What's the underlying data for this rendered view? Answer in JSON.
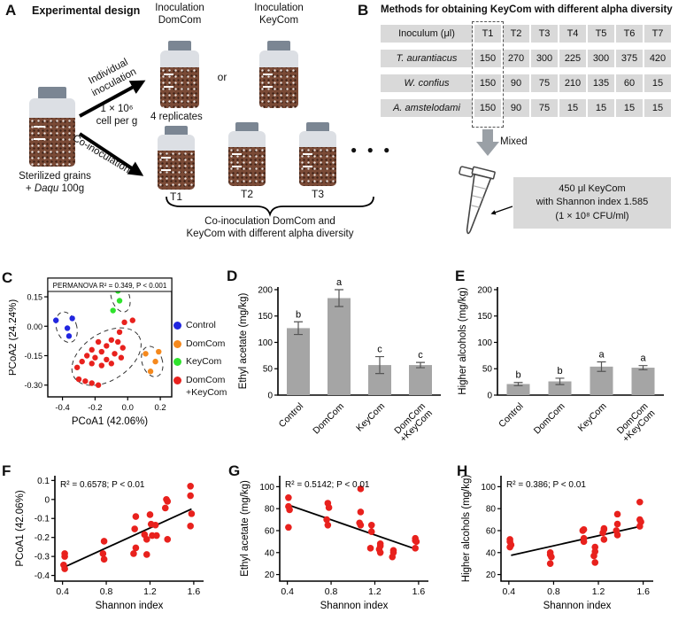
{
  "colors": {
    "bar_gray": "#a5a5a5",
    "red": "#e8211d",
    "blue": "#2126e0",
    "orange": "#f5891d",
    "green": "#2ee32c",
    "cell_gray": "#d9d9d9",
    "cap_gray": "#7b8693",
    "grain_brown": "#7a4a36"
  },
  "panels": {
    "a": {
      "tag": "A",
      "title": "Experimental design",
      "inoc_domcom": "Inoculation\nDomCom",
      "inoc_keycom": "Inoculation\nKeyCom",
      "or": "or",
      "individual": "Individual\ninoculation",
      "co": "Co-inoculation",
      "dose": "1 × 10⁶\ncell per g",
      "replicates": "4 replicates",
      "source_line1": "Sterilized grains",
      "source_pre": "+ ",
      "source_species": "Daqu",
      "source_post": " 100g",
      "jars": [
        "T1",
        "T2",
        "T3"
      ],
      "dots": "● ● ●",
      "brace_caption": "Co-inoculation DomCom and\nKeyCom with different alpha diversity"
    },
    "b": {
      "tag": "B",
      "title": "Methods for obtaining KeyCom with different alpha diversity",
      "table": {
        "header": [
          "Inoculum (μl)",
          "T1",
          "T2",
          "T3",
          "T4",
          "T5",
          "T6",
          "T7"
        ],
        "rows": [
          {
            "label": "T. aurantiacus",
            "italic": true,
            "values": [
              150,
              270,
              300,
              225,
              300,
              375,
              420
            ]
          },
          {
            "label": "W. confius",
            "italic": true,
            "values": [
              150,
              90,
              75,
              210,
              135,
              60,
              15
            ]
          },
          {
            "label": "A. amstelodami",
            "italic": true,
            "values": [
              150,
              90,
              75,
              15,
              15,
              15,
              15
            ]
          }
        ]
      },
      "mixed": "Mixed",
      "note": "450 μl KeyCom\nwith Shannon index 1.585\n(1 × 10⁸ CFU/ml)"
    },
    "c": {
      "tag": "C"
    },
    "d": {
      "tag": "D"
    },
    "e": {
      "tag": "E"
    },
    "f": {
      "tag": "F"
    },
    "g": {
      "tag": "G"
    },
    "h": {
      "tag": "H"
    }
  },
  "chart_data": [
    {
      "id": "pcoa",
      "panel": "C",
      "type": "scatter",
      "frame": "box",
      "annotation": "PERMANOVA R² = 0.349, P < 0.001",
      "annotation_boxed": true,
      "xlabel": "PCoA1 (42.06%)",
      "ylabel": "PCoA2 (24.24%)",
      "xlim": [
        -0.49,
        0.27
      ],
      "ylim": [
        -0.36,
        0.245
      ],
      "xticks": {
        "v": [
          -0.4,
          -0.2,
          0.0,
          0.2
        ],
        "t": [
          "-0.4",
          "-0.2",
          "0.0",
          "0.2"
        ]
      },
      "yticks": {
        "v": [
          0.15,
          0.0,
          -0.15,
          -0.3
        ],
        "t": [
          "0.15",
          "0.00",
          "-0.15",
          "-0.30"
        ]
      },
      "series": [
        {
          "name": "Control",
          "color": "#2126e0",
          "points": [
            [
              -0.44,
              0.03
            ],
            [
              -0.34,
              0.04
            ],
            [
              -0.37,
              -0.01
            ],
            [
              -0.36,
              -0.05
            ]
          ]
        },
        {
          "name": "DomCom",
          "color": "#f5891d",
          "points": [
            [
              0.11,
              -0.14
            ],
            [
              0.19,
              -0.13
            ],
            [
              0.17,
              -0.18
            ],
            [
              0.14,
              -0.23
            ]
          ]
        },
        {
          "name": "KeyCom",
          "color": "#2ee32c",
          "points": [
            [
              -0.06,
              0.18
            ],
            [
              0.01,
              0.19
            ],
            [
              -0.05,
              0.13
            ],
            [
              -0.09,
              0.08
            ]
          ]
        },
        {
          "name": "DomCom+KeyCom",
          "color": "#e8211d",
          "points": [
            [
              -0.02,
              0.02
            ],
            [
              0.03,
              0.03
            ],
            [
              -0.05,
              -0.03
            ],
            [
              -0.1,
              -0.07
            ],
            [
              -0.06,
              -0.08
            ],
            [
              -0.18,
              -0.08
            ],
            [
              -0.13,
              -0.1
            ],
            [
              -0.03,
              -0.11
            ],
            [
              -0.22,
              -0.12
            ],
            [
              -0.16,
              -0.13
            ],
            [
              -0.08,
              -0.14
            ],
            [
              -0.25,
              -0.15
            ],
            [
              -0.2,
              -0.16
            ],
            [
              -0.13,
              -0.17
            ],
            [
              -0.04,
              -0.16
            ],
            [
              -0.28,
              -0.18
            ],
            [
              -0.22,
              -0.19
            ],
            [
              -0.16,
              -0.2
            ],
            [
              -0.1,
              -0.19
            ],
            [
              -0.31,
              -0.21
            ],
            [
              -0.3,
              -0.27
            ],
            [
              -0.26,
              -0.28
            ],
            [
              -0.22,
              -0.29
            ],
            [
              -0.18,
              -0.3
            ]
          ]
        }
      ],
      "ellipses": [
        {
          "cx": -0.375,
          "cy": -0.005,
          "rx": 0.062,
          "ry": 0.08,
          "rot": -18
        },
        {
          "cx": -0.045,
          "cy": 0.15,
          "rx": 0.055,
          "ry": 0.08,
          "rot": -18
        },
        {
          "cx": 0.15,
          "cy": -0.18,
          "rx": 0.062,
          "ry": 0.08,
          "rot": -18
        },
        {
          "cx": -0.13,
          "cy": -0.155,
          "rx": 0.235,
          "ry": 0.12,
          "rot": -33
        }
      ],
      "legend": [
        {
          "label": "Control",
          "color": "#2126e0"
        },
        {
          "label": "DomCom",
          "color": "#f5891d"
        },
        {
          "label": "KeyCom",
          "color": "#2ee32c"
        },
        {
          "label": "DomCom\n+KeyCom",
          "color": "#e8211d"
        }
      ]
    },
    {
      "id": "ethyl_bar",
      "panel": "D",
      "type": "bar",
      "ylabel": "Ethyl acetate (mg/kg)",
      "categories": [
        "Control",
        "DomCom",
        "KeyCom",
        "DomCom\n+KeyCom"
      ],
      "values": [
        127,
        184,
        57,
        57
      ],
      "errors": [
        12,
        16,
        16,
        5
      ],
      "letters": [
        "b",
        "a",
        "c",
        "c"
      ],
      "xlim": [
        0,
        1
      ],
      "ylim": [
        0,
        205
      ],
      "xticks": {
        "v": [],
        "t": []
      },
      "yticks": {
        "v": [
          0,
          50,
          100,
          150,
          200
        ],
        "t": [
          "0",
          "50",
          "100",
          "150",
          "200"
        ]
      }
    },
    {
      "id": "higher_bar",
      "panel": "E",
      "type": "bar",
      "ylabel": "Higher alcohols (mg/kg)",
      "categories": [
        "Control",
        "DomCom",
        "KeyCom",
        "DomCom\n+KeyCom"
      ],
      "values": [
        21,
        26,
        54,
        52
      ],
      "errors": [
        3,
        6,
        9,
        4
      ],
      "letters": [
        "b",
        "b",
        "a",
        "a"
      ],
      "xlim": [
        0,
        1
      ],
      "ylim": [
        0,
        205
      ],
      "xticks": {
        "v": [],
        "t": []
      },
      "yticks": {
        "v": [
          0,
          50,
          100,
          150,
          200
        ],
        "t": [
          "0",
          "50",
          "100",
          "150",
          "200"
        ]
      }
    },
    {
      "id": "f",
      "panel": "F",
      "type": "scatter",
      "annotation": "R² = 0.6578; P < 0.01",
      "xlabel": "Shannon index",
      "ylabel": "PCoA1 (42.06%)",
      "xlim": [
        0.33,
        1.69
      ],
      "ylim": [
        -0.43,
        0.125
      ],
      "xticks": {
        "v": [
          0.4,
          0.8,
          1.2,
          1.6
        ],
        "t": [
          "0.4",
          "0.8",
          "1.2",
          "1.6"
        ]
      },
      "yticks": {
        "v": [
          0.1,
          0,
          -0.1,
          -0.2,
          -0.3,
          -0.4
        ],
        "t": [
          "0.1",
          "0",
          "-0.1",
          "-0.2",
          "-0.3",
          "-0.4"
        ]
      },
      "trend": [
        [
          0.42,
          -0.355
        ],
        [
          1.58,
          -0.05
        ]
      ],
      "series": [
        {
          "name": "samples",
          "color": "#e8211d",
          "points": [
            [
              0.42,
              -0.285
            ],
            [
              0.42,
              -0.3
            ],
            [
              0.41,
              -0.345
            ],
            [
              0.42,
              -0.365
            ],
            [
              0.78,
              -0.22
            ],
            [
              0.77,
              -0.285
            ],
            [
              0.78,
              -0.315
            ],
            [
              1.07,
              -0.09
            ],
            [
              1.06,
              -0.155
            ],
            [
              1.07,
              -0.255
            ],
            [
              1.05,
              -0.285
            ],
            [
              1.15,
              -0.185
            ],
            [
              1.17,
              -0.21
            ],
            [
              1.2,
              -0.08
            ],
            [
              1.21,
              -0.13
            ],
            [
              1.22,
              -0.19
            ],
            [
              1.17,
              -0.29
            ],
            [
              1.25,
              -0.135
            ],
            [
              1.26,
              -0.19
            ],
            [
              1.35,
              0.0
            ],
            [
              1.36,
              -0.01
            ],
            [
              1.34,
              -0.045
            ],
            [
              1.36,
              -0.21
            ],
            [
              1.57,
              0.07
            ],
            [
              1.57,
              0.02
            ],
            [
              1.58,
              -0.075
            ],
            [
              1.57,
              -0.14
            ]
          ]
        }
      ]
    },
    {
      "id": "g",
      "panel": "G",
      "type": "scatter",
      "annotation": "R² = 0.5142; P < 0.01",
      "xlabel": "Shannon index",
      "ylabel": "Ethyl acetate (mg/kg)",
      "xlim": [
        0.33,
        1.69
      ],
      "ylim": [
        14,
        110
      ],
      "xticks": {
        "v": [
          0.4,
          0.8,
          1.2,
          1.6
        ],
        "t": [
          "0.4",
          "0.8",
          "1.2",
          "1.6"
        ]
      },
      "yticks": {
        "v": [
          20,
          40,
          60,
          80,
          100
        ],
        "t": [
          "20",
          "40",
          "60",
          "80",
          "100"
        ]
      },
      "trend": [
        [
          0.42,
          83
        ],
        [
          1.58,
          43
        ]
      ],
      "series": [
        {
          "name": "samples",
          "color": "#e8211d",
          "points": [
            [
              0.41,
              90
            ],
            [
              0.41,
              82
            ],
            [
              0.42,
              79
            ],
            [
              0.41,
              63
            ],
            [
              0.77,
              85
            ],
            [
              0.78,
              81
            ],
            [
              0.76,
              70
            ],
            [
              0.77,
              65
            ],
            [
              1.07,
              98
            ],
            [
              1.07,
              77
            ],
            [
              1.06,
              67
            ],
            [
              1.07,
              65
            ],
            [
              1.17,
              65
            ],
            [
              1.17,
              59
            ],
            [
              1.16,
              44
            ],
            [
              1.25,
              48
            ],
            [
              1.25,
              46
            ],
            [
              1.24,
              43
            ],
            [
              1.25,
              40
            ],
            [
              1.37,
              42
            ],
            [
              1.37,
              40
            ],
            [
              1.36,
              36
            ],
            [
              1.57,
              53
            ],
            [
              1.57,
              51
            ],
            [
              1.58,
              50
            ],
            [
              1.57,
              44
            ]
          ]
        }
      ]
    },
    {
      "id": "h",
      "panel": "H",
      "type": "scatter",
      "annotation": "R² = 0.386; P < 0.01",
      "xlabel": "Shannon index",
      "ylabel": "Higher alcohols (mg/kg)",
      "xlim": [
        0.33,
        1.69
      ],
      "ylim": [
        14,
        110
      ],
      "xticks": {
        "v": [
          0.4,
          0.8,
          1.2,
          1.6
        ],
        "t": [
          "0.4",
          "0.8",
          "1.2",
          "1.6"
        ]
      },
      "yticks": {
        "v": [
          20,
          40,
          60,
          80,
          100
        ],
        "t": [
          "20",
          "40",
          "60",
          "80",
          "100"
        ]
      },
      "trend": [
        [
          0.42,
          37.5
        ],
        [
          1.58,
          64
        ]
      ],
      "series": [
        {
          "name": "samples",
          "color": "#e8211d",
          "points": [
            [
              0.41,
              52
            ],
            [
              0.41,
              50
            ],
            [
              0.42,
              47
            ],
            [
              0.41,
              45
            ],
            [
              0.77,
              40
            ],
            [
              0.77,
              38
            ],
            [
              0.78,
              36
            ],
            [
              0.77,
              30
            ],
            [
              1.07,
              61
            ],
            [
              1.06,
              60
            ],
            [
              1.07,
              53
            ],
            [
              1.07,
              50
            ],
            [
              1.17,
              45
            ],
            [
              1.17,
              41
            ],
            [
              1.16,
              37
            ],
            [
              1.17,
              31
            ],
            [
              1.25,
              62
            ],
            [
              1.25,
              61
            ],
            [
              1.24,
              58
            ],
            [
              1.25,
              52
            ],
            [
              1.37,
              75
            ],
            [
              1.37,
              66
            ],
            [
              1.36,
              60
            ],
            [
              1.37,
              56
            ],
            [
              1.57,
              86
            ],
            [
              1.57,
              70
            ],
            [
              1.58,
              68
            ],
            [
              1.57,
              64
            ]
          ]
        }
      ]
    }
  ]
}
